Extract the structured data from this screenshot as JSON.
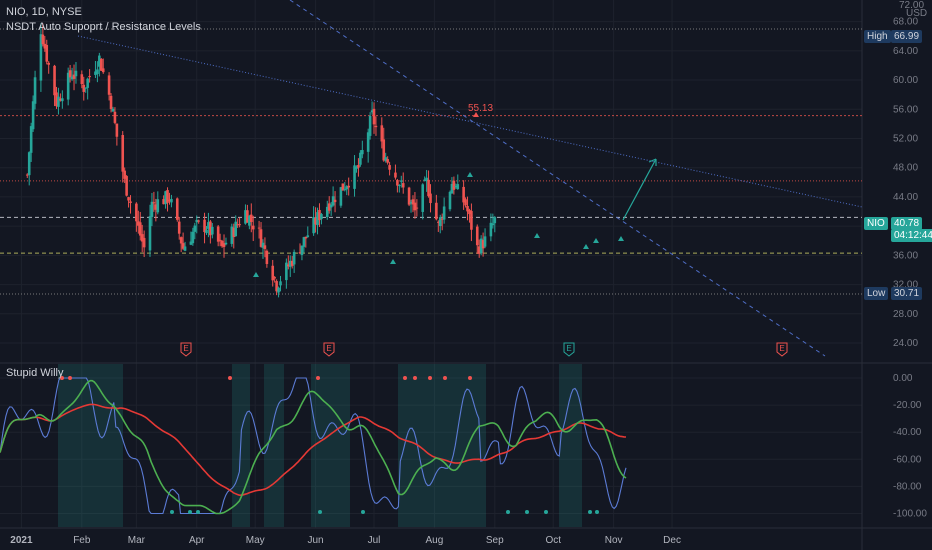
{
  "header": {
    "symbol_line": "NIO, 1D, NYSE",
    "indicator_name": "NSDT Auto Supoprt / Resistance Levels",
    "sub_indicator": "Stupid Willy"
  },
  "colors": {
    "background": "#131722",
    "up": "#26a69a",
    "down": "#ef5350",
    "willy": "#5b7bd5",
    "willy_fast": "#4caf50",
    "willy_slow": "#e53935"
  },
  "price_axis": {
    "currency": "USD",
    "ticks": [
      "72.00",
      "68.00",
      "64.00",
      "60.00",
      "56.00",
      "52.00",
      "48.00",
      "44.00",
      "40.00",
      "36.00",
      "32.00",
      "28.00",
      "24.00"
    ]
  },
  "osc_axis": {
    "ticks": [
      "0.00",
      "-20.00",
      "-40.00",
      "-60.00",
      "-80.00",
      "-100.00"
    ]
  },
  "x_axis": {
    "ticks": [
      "2021",
      "Feb",
      "Mar",
      "Apr",
      "May",
      "Jun",
      "Jul",
      "Aug",
      "Sep",
      "Oct",
      "Nov",
      "Dec"
    ]
  },
  "labels": {
    "high_label": "High",
    "high_value": "66.99",
    "low_label": "Low",
    "low_value": "30.71",
    "symbol_tag": "NIO",
    "last_price": "40.78",
    "countdown": "04:12:44",
    "peak_label": "55.13",
    "earnings": "E"
  },
  "chart_data": {
    "type": "candlestick",
    "title": "NIO, 1D, NYSE",
    "ylim": [
      20,
      72
    ],
    "high": 66.99,
    "low": 30.71,
    "last": 40.78,
    "levels": [
      55.13,
      46.2,
      41.2,
      36.3,
      30.71
    ],
    "anchor_points": [
      {
        "date": "2021-01-04",
        "price": 47
      },
      {
        "date": "2021-01-08",
        "price": 60
      },
      {
        "date": "2021-01-11",
        "price": 66.99
      },
      {
        "date": "2021-01-19",
        "price": 57
      },
      {
        "date": "2021-01-27",
        "price": 61
      },
      {
        "date": "2021-02-02",
        "price": 59
      },
      {
        "date": "2021-02-10",
        "price": 63
      },
      {
        "date": "2021-02-16",
        "price": 57
      },
      {
        "date": "2021-02-23",
        "price": 46
      },
      {
        "date": "2021-03-05",
        "price": 37
      },
      {
        "date": "2021-03-09",
        "price": 43
      },
      {
        "date": "2021-03-18",
        "price": 44
      },
      {
        "date": "2021-03-25",
        "price": 37
      },
      {
        "date": "2021-04-01",
        "price": 40
      },
      {
        "date": "2021-04-06",
        "price": 40
      },
      {
        "date": "2021-04-14",
        "price": 37
      },
      {
        "date": "2021-04-26",
        "price": 42
      },
      {
        "date": "2021-05-03",
        "price": 39
      },
      {
        "date": "2021-05-12",
        "price": 32
      },
      {
        "date": "2021-05-19",
        "price": 35
      },
      {
        "date": "2021-05-26",
        "price": 38
      },
      {
        "date": "2021-06-04",
        "price": 42
      },
      {
        "date": "2021-06-14",
        "price": 45
      },
      {
        "date": "2021-06-23",
        "price": 48
      },
      {
        "date": "2021-06-30",
        "price": 55.13
      },
      {
        "date": "2021-07-06",
        "price": 50
      },
      {
        "date": "2021-07-14",
        "price": 46
      },
      {
        "date": "2021-07-22",
        "price": 42
      },
      {
        "date": "2021-07-28",
        "price": 46
      },
      {
        "date": "2021-08-03",
        "price": 40
      },
      {
        "date": "2021-08-10",
        "price": 46
      },
      {
        "date": "2021-08-17",
        "price": 43
      },
      {
        "date": "2021-08-23",
        "price": 37
      },
      {
        "date": "2021-08-27",
        "price": 38
      },
      {
        "date": "2021-09-01",
        "price": 40.78
      }
    ]
  }
}
